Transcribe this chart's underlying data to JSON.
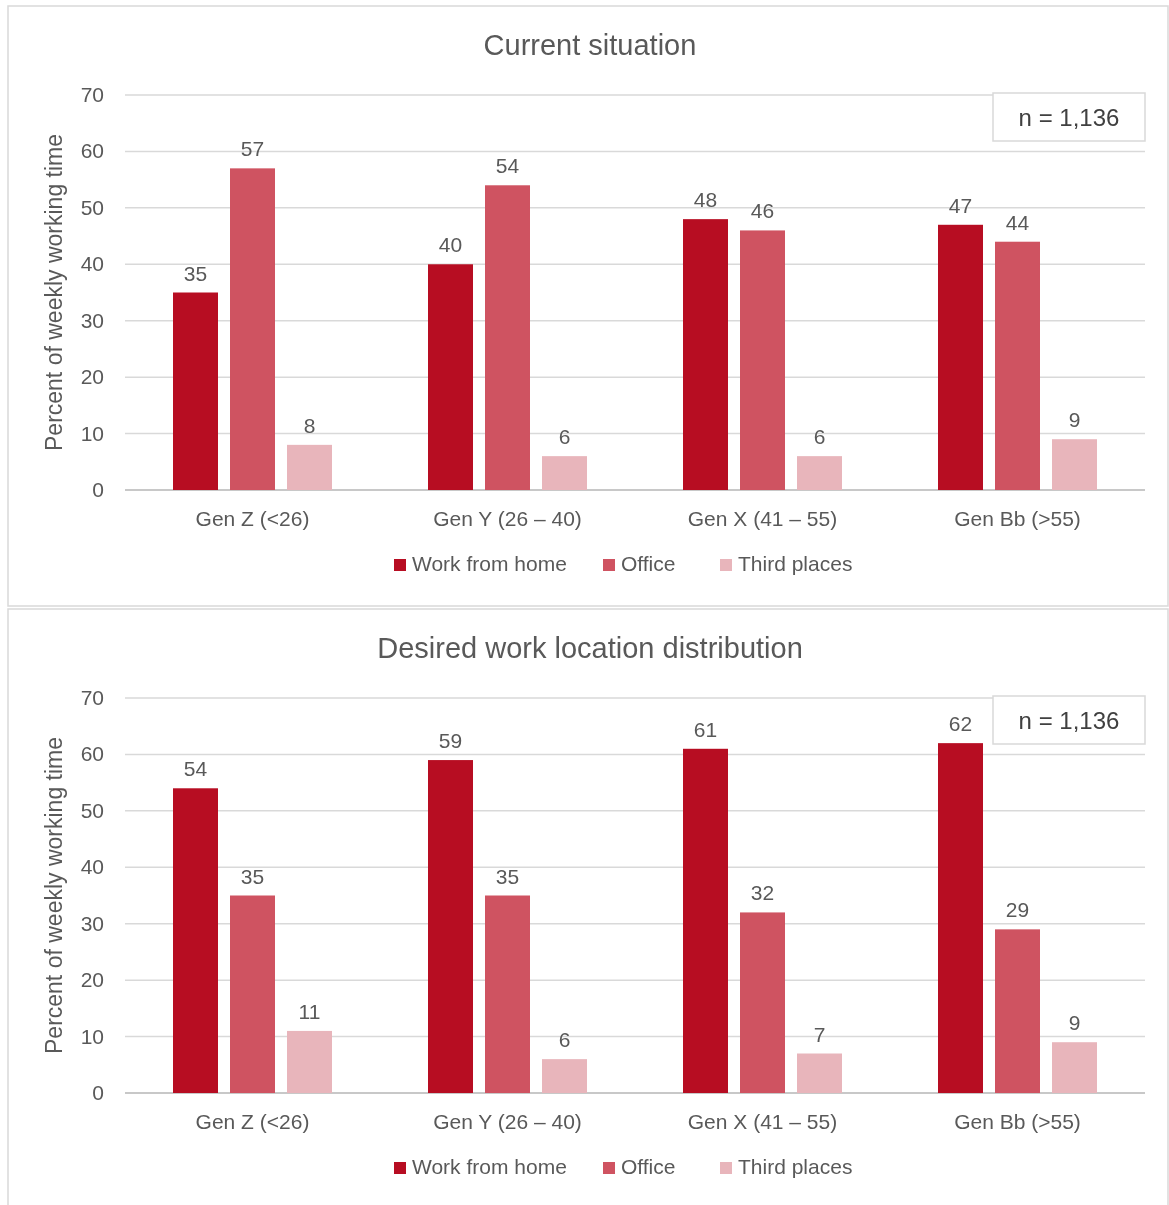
{
  "chart_data": [
    {
      "type": "bar",
      "title": "Current situation",
      "ylabel": "Percent of weekly working time",
      "categories": [
        "Gen Z (<26)",
        "Gen Y (26 – 40)",
        "Gen X (41 – 55)",
        "Gen Bb (>55)"
      ],
      "series": [
        {
          "name": "Work from home",
          "color": "#b70d22",
          "values": [
            35,
            40,
            48,
            47
          ]
        },
        {
          "name": "Office",
          "color": "#cf5361",
          "values": [
            57,
            54,
            46,
            44
          ]
        },
        {
          "name": "Third places",
          "color": "#e8b5bb",
          "values": [
            8,
            6,
            6,
            9
          ]
        }
      ],
      "ylim": [
        0,
        70
      ],
      "yticks": [
        0,
        10,
        20,
        30,
        40,
        50,
        60,
        70
      ],
      "grid": "y",
      "legend": "bottom",
      "data_labels": true,
      "annotations": [
        "n = 1,136"
      ]
    },
    {
      "type": "bar",
      "title": "Desired work location distribution",
      "ylabel": "Percent of weekly working time",
      "categories": [
        "Gen Z (<26)",
        "Gen Y (26 – 40)",
        "Gen X (41 – 55)",
        "Gen Bb (>55)"
      ],
      "series": [
        {
          "name": "Work from home",
          "color": "#b70d22",
          "values": [
            54,
            59,
            61,
            62
          ]
        },
        {
          "name": "Office",
          "color": "#cf5361",
          "values": [
            35,
            35,
            32,
            29
          ]
        },
        {
          "name": "Third places",
          "color": "#e8b5bb",
          "values": [
            11,
            6,
            7,
            9
          ]
        }
      ],
      "ylim": [
        0,
        70
      ],
      "yticks": [
        0,
        10,
        20,
        30,
        40,
        50,
        60,
        70
      ],
      "grid": "y",
      "legend": "bottom",
      "data_labels": true,
      "annotations": [
        "n = 1,136"
      ]
    }
  ]
}
